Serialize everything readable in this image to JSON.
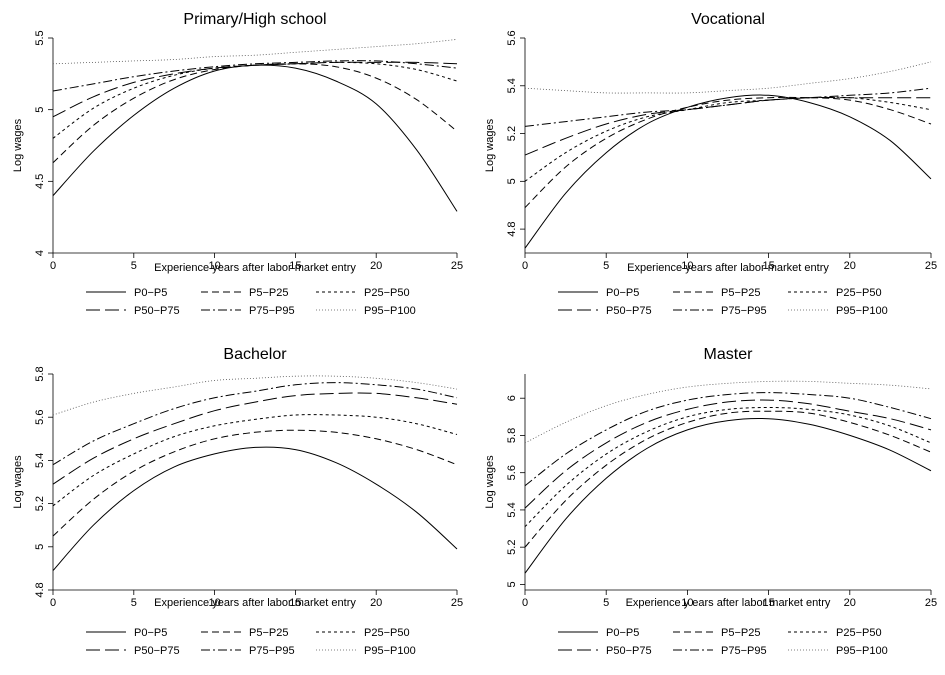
{
  "legend_entries": [
    "P0−P5",
    "P5−P25",
    "P25−P50",
    "P50−P75",
    "P75−P95",
    "P95−P100"
  ],
  "chart_data": [
    {
      "type": "line",
      "title": "Primary/High school",
      "xlabel": "Experience years after labor market entry",
      "ylabel": "Log wages",
      "xlim": [
        0,
        25
      ],
      "ylim": [
        4,
        5.5
      ],
      "xticks": [
        0,
        5,
        10,
        15,
        20,
        25
      ],
      "yticks": [
        "4",
        "4.5",
        "5",
        "5.5"
      ],
      "grid": false,
      "legend": "below",
      "x": [
        0,
        2.5,
        5,
        7.5,
        10,
        12.5,
        15,
        17.5,
        20,
        22.5,
        25
      ],
      "series": [
        {
          "name": "P0−P5",
          "style": "solid",
          "values": [
            4.4,
            4.71,
            4.96,
            5.15,
            5.27,
            5.31,
            5.29,
            5.2,
            5.04,
            4.72,
            4.29
          ]
        },
        {
          "name": "P5−P25",
          "style": "dash",
          "values": [
            4.63,
            4.89,
            5.08,
            5.21,
            5.28,
            5.31,
            5.32,
            5.3,
            5.22,
            5.07,
            4.85
          ]
        },
        {
          "name": "P25−P50",
          "style": "shortdash",
          "values": [
            4.8,
            5.01,
            5.15,
            5.24,
            5.29,
            5.31,
            5.32,
            5.33,
            5.32,
            5.28,
            5.2
          ]
        },
        {
          "name": "P50−P75",
          "style": "longdash",
          "values": [
            4.95,
            5.09,
            5.19,
            5.25,
            5.29,
            5.31,
            5.32,
            5.33,
            5.33,
            5.33,
            5.32
          ]
        },
        {
          "name": "P75−P95",
          "style": "dashdot",
          "values": [
            5.13,
            5.18,
            5.23,
            5.27,
            5.3,
            5.32,
            5.33,
            5.34,
            5.34,
            5.32,
            5.29
          ]
        },
        {
          "name": "P95−P100",
          "style": "dot",
          "values": [
            5.32,
            5.33,
            5.34,
            5.35,
            5.37,
            5.38,
            5.4,
            5.42,
            5.44,
            5.46,
            5.49
          ]
        }
      ]
    },
    {
      "type": "line",
      "title": "Vocational",
      "xlabel": "Experience years after labor market entry",
      "ylabel": "Log wages",
      "xlim": [
        0,
        25
      ],
      "ylim": [
        4.7,
        5.6
      ],
      "xticks": [
        0,
        5,
        10,
        15,
        20,
        25
      ],
      "yticks": [
        "4.8",
        "5",
        "5.2",
        "5.4",
        "5.6"
      ],
      "grid": false,
      "legend": "below",
      "x": [
        0,
        2.5,
        5,
        7.5,
        10,
        12.5,
        15,
        17.5,
        20,
        22.5,
        25
      ],
      "series": [
        {
          "name": "P0−P5",
          "style": "solid",
          "values": [
            4.72,
            4.95,
            5.12,
            5.24,
            5.31,
            5.35,
            5.36,
            5.33,
            5.27,
            5.17,
            5.01
          ]
        },
        {
          "name": "P5−P25",
          "style": "dash",
          "values": [
            4.89,
            5.06,
            5.18,
            5.26,
            5.31,
            5.34,
            5.35,
            5.35,
            5.34,
            5.3,
            5.24
          ]
        },
        {
          "name": "P25−P50",
          "style": "shortdash",
          "values": [
            5.0,
            5.12,
            5.21,
            5.27,
            5.3,
            5.33,
            5.34,
            5.35,
            5.35,
            5.33,
            5.3
          ]
        },
        {
          "name": "P50−P75",
          "style": "longdash",
          "values": [
            5.11,
            5.18,
            5.24,
            5.28,
            5.3,
            5.32,
            5.34,
            5.35,
            5.35,
            5.35,
            5.35
          ]
        },
        {
          "name": "P75−P95",
          "style": "dashdot",
          "values": [
            5.23,
            5.25,
            5.27,
            5.29,
            5.3,
            5.32,
            5.34,
            5.35,
            5.36,
            5.37,
            5.39
          ]
        },
        {
          "name": "P95−P100",
          "style": "dot",
          "values": [
            5.39,
            5.38,
            5.37,
            5.37,
            5.37,
            5.38,
            5.39,
            5.41,
            5.43,
            5.46,
            5.5
          ]
        }
      ]
    },
    {
      "type": "line",
      "title": "Bachelor",
      "xlabel": "Experience years after labor market entry",
      "ylabel": "Log wages",
      "xlim": [
        0,
        25
      ],
      "ylim": [
        4.8,
        5.8
      ],
      "xticks": [
        0,
        5,
        10,
        15,
        20,
        25
      ],
      "yticks": [
        "4.8",
        "5",
        "5.2",
        "5.4",
        "5.6",
        "5.8"
      ],
      "grid": false,
      "legend": "below",
      "x": [
        0,
        2.5,
        5,
        7.5,
        10,
        12.5,
        15,
        17.5,
        20,
        22.5,
        25
      ],
      "series": [
        {
          "name": "P0−P5",
          "style": "solid",
          "values": [
            4.89,
            5.1,
            5.26,
            5.37,
            5.43,
            5.46,
            5.45,
            5.39,
            5.29,
            5.16,
            4.99
          ]
        },
        {
          "name": "P5−P25",
          "style": "dash",
          "values": [
            5.05,
            5.22,
            5.35,
            5.44,
            5.5,
            5.53,
            5.54,
            5.53,
            5.5,
            5.45,
            5.38
          ]
        },
        {
          "name": "P25−P50",
          "style": "shortdash",
          "values": [
            5.19,
            5.33,
            5.43,
            5.51,
            5.56,
            5.59,
            5.61,
            5.61,
            5.6,
            5.57,
            5.52
          ]
        },
        {
          "name": "P50−P75",
          "style": "longdash",
          "values": [
            5.29,
            5.41,
            5.5,
            5.57,
            5.63,
            5.67,
            5.7,
            5.71,
            5.71,
            5.69,
            5.66
          ]
        },
        {
          "name": "P75−P95",
          "style": "dashdot",
          "values": [
            5.38,
            5.49,
            5.57,
            5.64,
            5.69,
            5.72,
            5.75,
            5.76,
            5.75,
            5.73,
            5.69
          ]
        },
        {
          "name": "P95−P100",
          "style": "dot",
          "values": [
            5.61,
            5.67,
            5.71,
            5.74,
            5.77,
            5.78,
            5.79,
            5.79,
            5.78,
            5.76,
            5.73
          ]
        }
      ]
    },
    {
      "type": "line",
      "title": "Master",
      "xlabel": "Experience y ears after labor market entry",
      "ylabel": "Log wages",
      "xlim": [
        0,
        25
      ],
      "ylim": [
        4.97,
        6.13
      ],
      "xticks": [
        0,
        5,
        10,
        15,
        20,
        25
      ],
      "yticks": [
        "5",
        "5.2",
        "5.4",
        "5.6",
        "5.8",
        "6"
      ],
      "grid": false,
      "legend": "below",
      "x": [
        0,
        2.5,
        5,
        7.5,
        10,
        12.5,
        15,
        17.5,
        20,
        22.5,
        25
      ],
      "series": [
        {
          "name": "P0−P5",
          "style": "solid",
          "values": [
            5.06,
            5.35,
            5.57,
            5.73,
            5.83,
            5.88,
            5.89,
            5.86,
            5.8,
            5.72,
            5.61
          ]
        },
        {
          "name": "P5−P25",
          "style": "dash",
          "values": [
            5.2,
            5.45,
            5.64,
            5.78,
            5.87,
            5.92,
            5.93,
            5.92,
            5.87,
            5.8,
            5.71
          ]
        },
        {
          "name": "P25−P50",
          "style": "shortdash",
          "values": [
            5.31,
            5.53,
            5.7,
            5.82,
            5.9,
            5.94,
            5.95,
            5.94,
            5.91,
            5.85,
            5.76
          ]
        },
        {
          "name": "P50−P75",
          "style": "longdash",
          "values": [
            5.41,
            5.61,
            5.76,
            5.87,
            5.94,
            5.98,
            5.99,
            5.97,
            5.93,
            5.89,
            5.83
          ]
        },
        {
          "name": "P75−P95",
          "style": "dashdot",
          "values": [
            5.53,
            5.7,
            5.83,
            5.93,
            5.99,
            6.02,
            6.03,
            6.02,
            6.0,
            5.95,
            5.89
          ]
        },
        {
          "name": "P95−P100",
          "style": "dot",
          "values": [
            5.76,
            5.87,
            5.96,
            6.02,
            6.06,
            6.08,
            6.09,
            6.09,
            6.08,
            6.07,
            6.05
          ]
        }
      ]
    }
  ]
}
